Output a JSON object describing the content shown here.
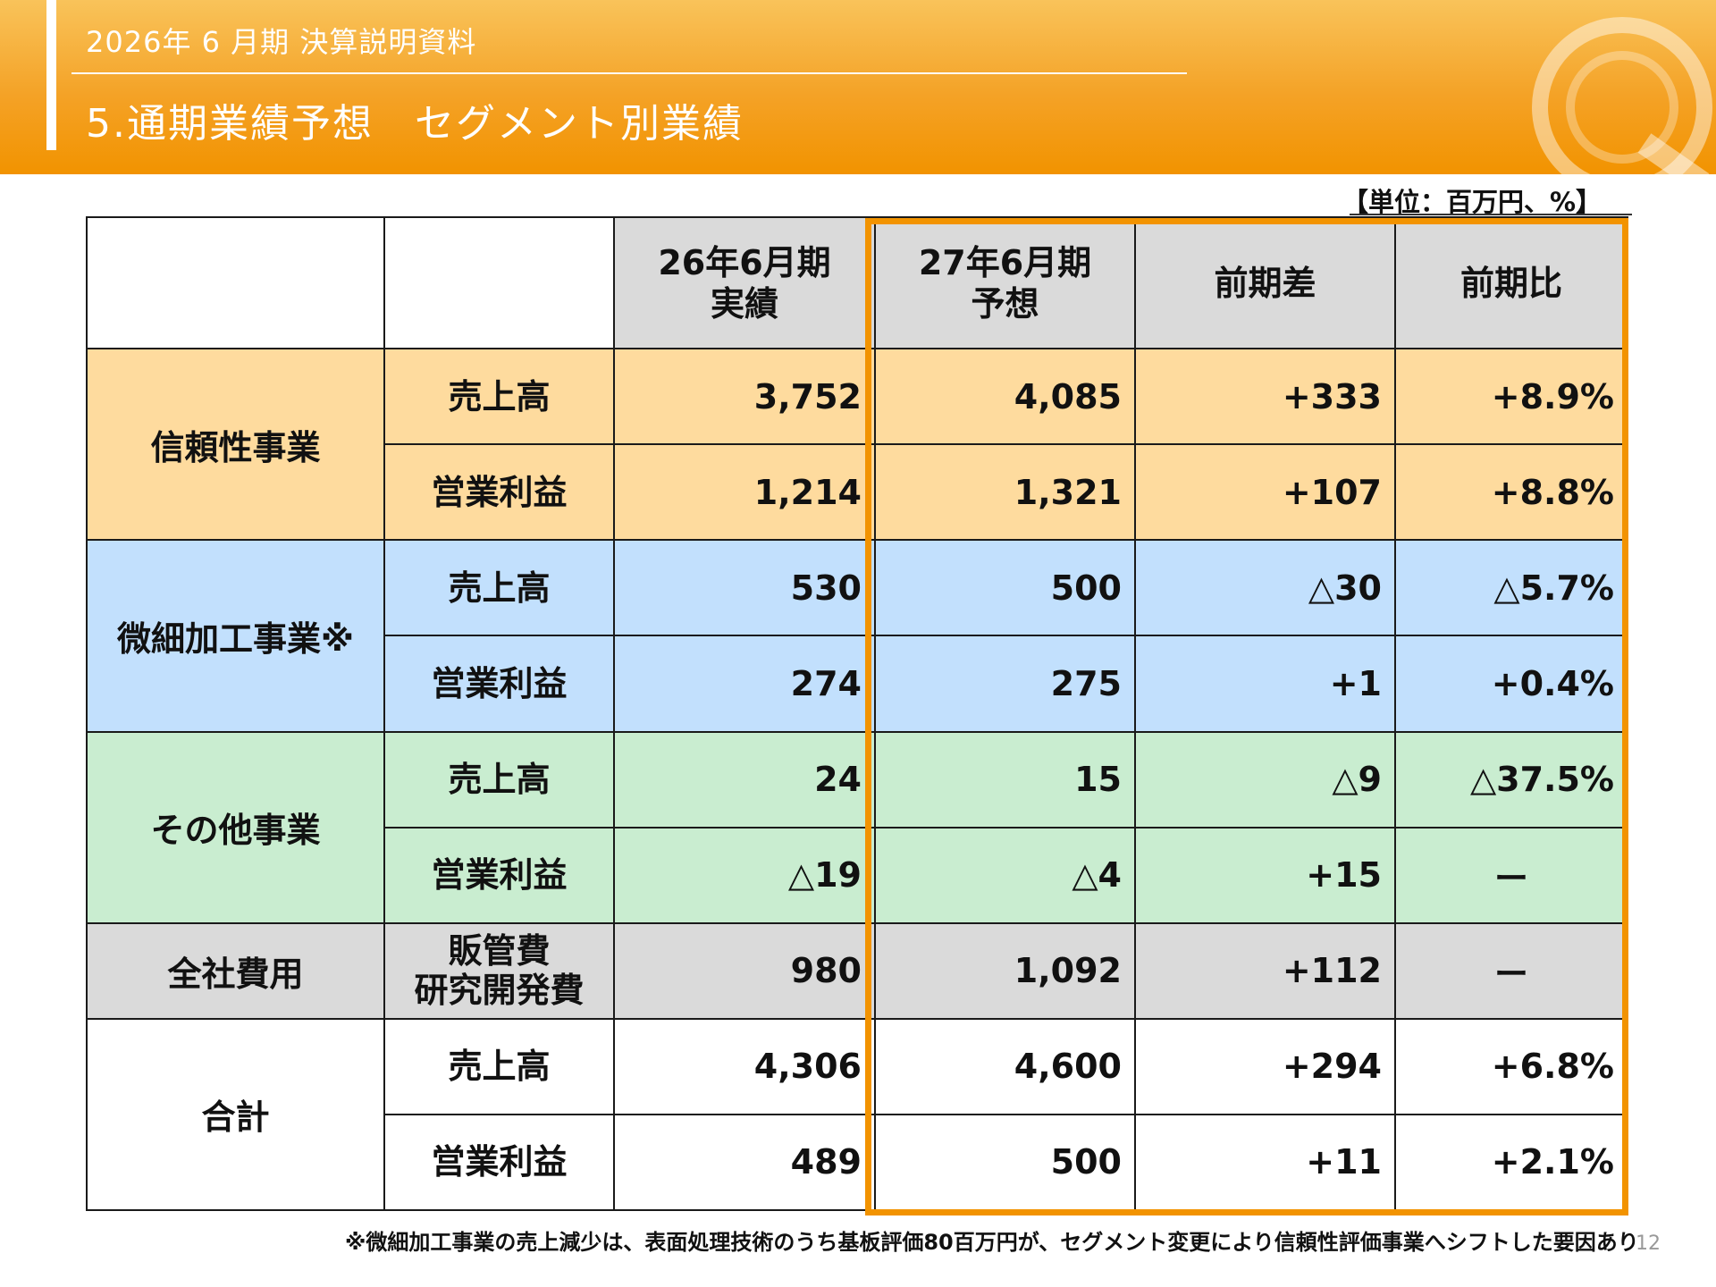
{
  "header": {
    "subtitle": "2026年 6 月期 決算説明資料",
    "title": "5.通期業績予想　セグメント別業績",
    "accent_color": "#f29300"
  },
  "unit_label": "【単位：百万円、%】",
  "table": {
    "columns": [
      "26年6月期\n実績",
      "27年6月期\n予想",
      "前期差",
      "前期比"
    ],
    "groups": [
      {
        "name": "信頼性事業",
        "color": "#fedb9e",
        "rows": [
          {
            "item": "売上高",
            "values": [
              "3,752",
              "4,085",
              "+333",
              "+8.9%"
            ]
          },
          {
            "item": "営業利益",
            "values": [
              "1,214",
              "1,321",
              "+107",
              "+8.8%"
            ]
          }
        ]
      },
      {
        "name": "微細加工事業※",
        "color": "#c2e0fd",
        "rows": [
          {
            "item": "売上高",
            "values": [
              "530",
              "500",
              "△30",
              "△5.7%"
            ]
          },
          {
            "item": "営業利益",
            "values": [
              "274",
              "275",
              "+1",
              "+0.4%"
            ]
          }
        ]
      },
      {
        "name": "その他事業",
        "color": "#c9edd0",
        "rows": [
          {
            "item": "売上高",
            "values": [
              "24",
              "15",
              "△9",
              "△37.5%"
            ]
          },
          {
            "item": "営業利益",
            "values": [
              "△19",
              "△4",
              "+15",
              "ー"
            ]
          }
        ]
      },
      {
        "name": "全社費用",
        "color": "#dadada",
        "rows": [
          {
            "item": "販管費\n研究開発費",
            "values": [
              "980",
              "1,092",
              "+112",
              "ー"
            ]
          }
        ]
      },
      {
        "name": "合計",
        "color": "#ffffff",
        "rows": [
          {
            "item": "売上高",
            "values": [
              "4,306",
              "4,600",
              "+294",
              "+6.8%"
            ]
          },
          {
            "item": "営業利益",
            "values": [
              "489",
              "500",
              "+11",
              "+2.1%"
            ]
          }
        ]
      }
    ]
  },
  "footnote": "※微細加工事業の売上減少は、表面処理技術のうち基板評価80百万円が、セグメント変更により信頼性評価事業へシフトした要因あり",
  "page_number": "12"
}
